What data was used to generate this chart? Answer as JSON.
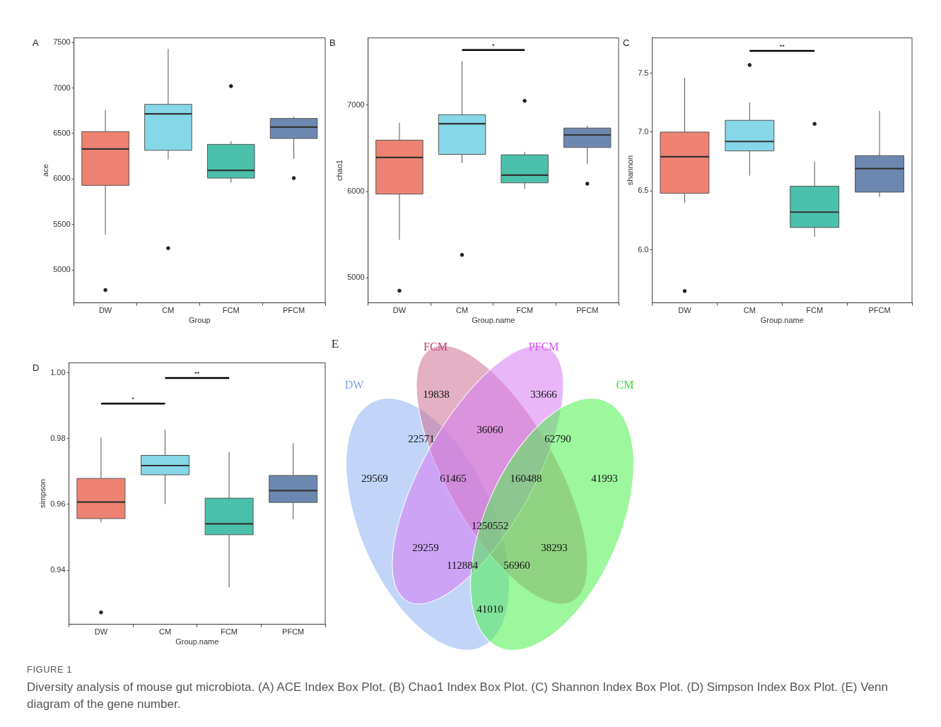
{
  "chart_data": [
    {
      "type": "box",
      "title": "A",
      "xlabel": "Group",
      "ylabel": "ace",
      "categories": [
        "DW",
        "CM",
        "FCM",
        "PFCM"
      ],
      "colors": [
        "#ee8272",
        "#86d7e7",
        "#4bc1ab",
        "#6d88b0"
      ],
      "ylim": [
        4640,
        7550
      ],
      "yticks": [
        5000,
        5500,
        6000,
        6500,
        7000,
        7500
      ],
      "boxes": [
        {
          "low": 5390,
          "q1": 5930,
          "median": 6330,
          "q3": 6520,
          "high": 6760,
          "outliers": [
            4780
          ]
        },
        {
          "low": 6215,
          "q1": 6315,
          "median": 6715,
          "q3": 6820,
          "high": 7430,
          "outliers": [
            5240
          ]
        },
        {
          "low": 5960,
          "q1": 6010,
          "median": 6095,
          "q3": 6380,
          "high": 6415,
          "outliers": [
            7020
          ]
        },
        {
          "low": 6220,
          "q1": 6445,
          "median": 6570,
          "q3": 6665,
          "high": 6685,
          "outliers": [
            6010
          ]
        }
      ]
    },
    {
      "type": "box",
      "title": "B",
      "xlabel": "Group.name",
      "ylabel": "chao1",
      "categories": [
        "DW",
        "CM",
        "FCM",
        "PFCM"
      ],
      "colors": [
        "#ee8272",
        "#86d7e7",
        "#4bc1ab",
        "#6d88b0"
      ],
      "ylim": [
        4710,
        7780
      ],
      "yticks": [
        5000,
        6000,
        7000
      ],
      "annotations": [
        "*"
      ],
      "boxes": [
        {
          "low": 5440,
          "q1": 5970,
          "median": 6395,
          "q3": 6595,
          "high": 6795,
          "outliers": [
            4850
          ]
        },
        {
          "low": 6330,
          "q1": 6430,
          "median": 6785,
          "q3": 6890,
          "high": 7510,
          "outliers": [
            5265
          ]
        },
        {
          "low": 6030,
          "q1": 6100,
          "median": 6190,
          "q3": 6425,
          "high": 6460,
          "outliers": [
            7050
          ]
        },
        {
          "low": 6320,
          "q1": 6510,
          "median": 6655,
          "q3": 6735,
          "high": 6760,
          "outliers": [
            6090
          ]
        }
      ]
    },
    {
      "type": "box",
      "title": "C",
      "xlabel": "Group.name",
      "ylabel": "shannon",
      "categories": [
        "DW",
        "CM",
        "FCM",
        "PFCM"
      ],
      "colors": [
        "#ee8272",
        "#86d7e7",
        "#4bc1ab",
        "#6d88b0"
      ],
      "ylim": [
        5.55,
        7.8
      ],
      "yticks": [
        {
          "value": 6.0,
          "label": "6.0"
        },
        {
          "value": 6.5,
          "label": "6.5"
        },
        {
          "value": 7.0,
          "label": "7.0"
        },
        {
          "value": 7.5,
          "label": "7.5"
        }
      ],
      "annotations": [
        "**"
      ],
      "boxes": [
        {
          "low": 6.4,
          "q1": 6.48,
          "median": 6.79,
          "q3": 7.0,
          "high": 7.46,
          "outliers": [
            5.65
          ]
        },
        {
          "low": 6.63,
          "q1": 6.84,
          "median": 6.92,
          "q3": 7.1,
          "high": 7.25,
          "outliers": [
            7.57
          ]
        },
        {
          "low": 6.11,
          "q1": 6.19,
          "median": 6.32,
          "q3": 6.54,
          "high": 6.75,
          "outliers": [
            7.07
          ]
        },
        {
          "low": 6.45,
          "q1": 6.49,
          "median": 6.69,
          "q3": 6.8,
          "high": 7.18
        }
      ]
    },
    {
      "type": "box",
      "title": "D",
      "xlabel": "Group.name",
      "ylabel": "simpson",
      "categories": [
        "DW",
        "CM",
        "FCM",
        "PFCM"
      ],
      "colors": [
        "#ee8272",
        "#86d7e7",
        "#4bc1ab",
        "#6d88b0"
      ],
      "ylim": [
        0.9236,
        1.003
      ],
      "yticks": [
        {
          "value": 0.94,
          "label": "0.94"
        },
        {
          "value": 0.96,
          "label": "0.96"
        },
        {
          "value": 0.98,
          "label": "0.98"
        },
        {
          "value": 1.0,
          "label": "1.00"
        }
      ],
      "annotations": [
        "*",
        "**"
      ],
      "boxes": [
        {
          "low": 0.9546,
          "q1": 0.9557,
          "median": 0.9607,
          "q3": 0.9679,
          "high": 0.9803,
          "outliers": [
            0.9272
          ]
        },
        {
          "low": 0.9601,
          "q1": 0.969,
          "median": 0.9718,
          "q3": 0.9749,
          "high": 0.9827
        },
        {
          "low": 0.9348,
          "q1": 0.9508,
          "median": 0.9541,
          "q3": 0.9619,
          "high": 0.9759
        },
        {
          "low": 0.9555,
          "q1": 0.9606,
          "median": 0.9642,
          "q3": 0.9688,
          "high": 0.9786
        }
      ]
    },
    {
      "type": "other",
      "title": "E",
      "colors": [
        "#8fb2f2",
        "#cc6f93",
        "#d77cf2",
        "#4cf04c"
      ],
      "annotations": [
        "DW",
        "FCM",
        "PFCM",
        "CM",
        "19838",
        "33666",
        "36060",
        "22571",
        "62790",
        "29569",
        "41993",
        "61465",
        "160488",
        "1250552",
        "29259",
        "38293",
        "112884",
        "56960",
        "41010"
      ]
    },
    {
      "type": "other",
      "title": "FIGURE 1",
      "annotations": [
        "Diversity analysis of mouse gut microbiota. (A) ACE Index Box Plot. (B) Chao1 Index Box Plot. (C) Shannon Index Box Plot. (D) Simpson Index Box Plot. (E) Venn diagram of the gene number."
      ]
    }
  ]
}
